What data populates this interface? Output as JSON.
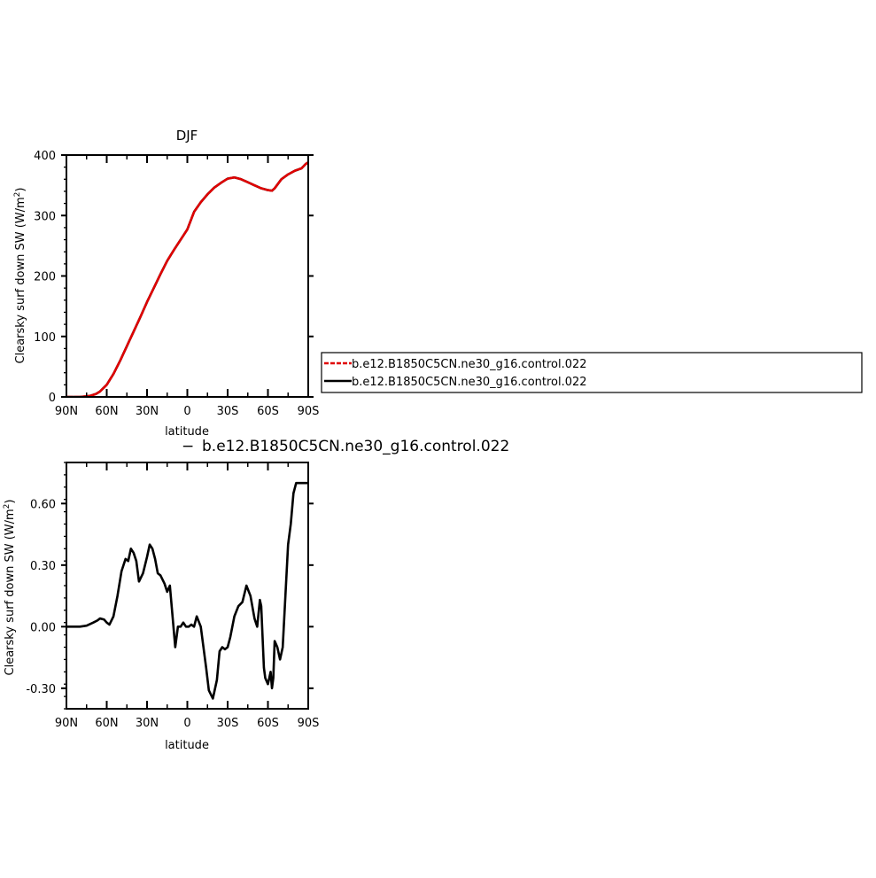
{
  "chart_data": [
    {
      "type": "line",
      "title": "DJF",
      "xlabel": "latitude",
      "ylabel": "Clearsky surf down SW (W/m",
      "ylabel_sup": "2",
      "ylabel_close": ")",
      "x_tick_values": [
        90,
        60,
        30,
        0,
        -30,
        -60,
        -90
      ],
      "x_tick_labels": [
        "90N",
        "60N",
        "30N",
        "0",
        "30S",
        "60S",
        "90S"
      ],
      "xlim": [
        90,
        -90
      ],
      "y_tick_values": [
        0,
        100,
        200,
        300,
        400
      ],
      "y_tick_labels": [
        "0",
        "100",
        "200",
        "300",
        "400"
      ],
      "ylim": [
        0,
        400
      ],
      "legend_placement": "right",
      "series": [
        {
          "name": "b.e12.B1850C5CN.ne30_g16.control.022",
          "color": "#000000",
          "x": [
            90,
            80,
            75,
            72,
            68,
            65,
            60,
            55,
            50,
            45,
            40,
            35,
            30,
            25,
            20,
            15,
            10,
            5,
            0,
            -5,
            -10,
            -15,
            -20,
            -25,
            -30,
            -35,
            -40,
            -45,
            -50,
            -55,
            -60,
            -63,
            -65,
            -70,
            -75,
            -80,
            -85,
            -88,
            -90
          ],
          "y": [
            0,
            0,
            1,
            2,
            5,
            9,
            20,
            38,
            60,
            84,
            108,
            132,
            157,
            180,
            203,
            225,
            243,
            260,
            277,
            306,
            322,
            335,
            346,
            354,
            361,
            363,
            360,
            355,
            350,
            345,
            342,
            341,
            345,
            360,
            368,
            374,
            378,
            385,
            388
          ]
        },
        {
          "name": "b.e12.B1850C5CN.ne30_g16.control.022",
          "color": "#e00000",
          "line_style": "dashed",
          "x": [
            90,
            80,
            75,
            72,
            68,
            65,
            60,
            55,
            50,
            45,
            40,
            35,
            30,
            25,
            20,
            15,
            10,
            5,
            0,
            -5,
            -10,
            -15,
            -20,
            -25,
            -30,
            -35,
            -40,
            -45,
            -50,
            -55,
            -60,
            -63,
            -65,
            -70,
            -75,
            -80,
            -85,
            -88,
            -90
          ],
          "y": [
            0,
            0,
            1,
            2,
            5,
            9,
            20,
            38,
            60,
            84,
            108,
            132,
            157,
            180,
            203,
            225,
            243,
            260,
            277,
            306,
            322,
            335,
            346,
            354,
            361,
            363,
            360,
            355,
            350,
            345,
            342,
            341,
            345,
            360,
            368,
            374,
            378,
            385,
            388
          ]
        }
      ]
    },
    {
      "type": "line",
      "title": "b.e12.B1850C5CN.ne30_g16.control.022",
      "title_prefix": "−",
      "xlabel": "latitude",
      "ylabel": "Clearsky surf down SW (W/m",
      "ylabel_sup": "2",
      "ylabel_close": ")",
      "x_tick_values": [
        90,
        60,
        30,
        0,
        -30,
        -60,
        -90
      ],
      "x_tick_labels": [
        "90N",
        "60N",
        "30N",
        "0",
        "30S",
        "60S",
        "90S"
      ],
      "xlim": [
        90,
        -90
      ],
      "y_tick_values": [
        -0.3,
        0,
        0.3,
        0.6
      ],
      "y_tick_labels": [
        "-0.30",
        "0.00",
        "0.30",
        "0.60"
      ],
      "ylim": [
        -0.4,
        0.8
      ],
      "series": [
        {
          "color": "#000000",
          "x": [
            90,
            80,
            75,
            70,
            67,
            65,
            62,
            60,
            58,
            55,
            52,
            49,
            46,
            44,
            42,
            40,
            38,
            36,
            33,
            30,
            28,
            26,
            24,
            22,
            20,
            17,
            15,
            13,
            11,
            9,
            7,
            5,
            3,
            1,
            -1,
            -3,
            -5,
            -7,
            -10,
            -12,
            -14,
            -16,
            -19,
            -22,
            -24,
            -26,
            -28,
            -30,
            -32,
            -35,
            -38,
            -41,
            -44,
            -47,
            -50,
            -52,
            -54,
            -55,
            -57,
            -58,
            -60,
            -62,
            -63,
            -64,
            -65,
            -67,
            -69,
            -71,
            -73,
            -75,
            -77,
            -79,
            -81,
            -83,
            -85,
            -87,
            -89,
            -90
          ],
          "y": [
            0.0,
            0.0,
            0.005,
            0.02,
            0.03,
            0.04,
            0.035,
            0.02,
            0.01,
            0.05,
            0.15,
            0.27,
            0.33,
            0.32,
            0.38,
            0.36,
            0.32,
            0.22,
            0.26,
            0.34,
            0.4,
            0.38,
            0.33,
            0.26,
            0.25,
            0.21,
            0.17,
            0.2,
            0.05,
            -0.1,
            0.0,
            0.0,
            0.02,
            0.0,
            0.0,
            0.01,
            0.0,
            0.05,
            0.0,
            -0.1,
            -0.2,
            -0.31,
            -0.35,
            -0.26,
            -0.12,
            -0.1,
            -0.11,
            -0.1,
            -0.05,
            0.05,
            0.1,
            0.12,
            0.2,
            0.15,
            0.04,
            0.0,
            0.13,
            0.1,
            -0.2,
            -0.25,
            -0.28,
            -0.22,
            -0.3,
            -0.25,
            -0.07,
            -0.1,
            -0.16,
            -0.1,
            0.15,
            0.4,
            0.5,
            0.65,
            0.7,
            0.7,
            0.7,
            0.7,
            0.7,
            0.7
          ]
        }
      ]
    }
  ]
}
